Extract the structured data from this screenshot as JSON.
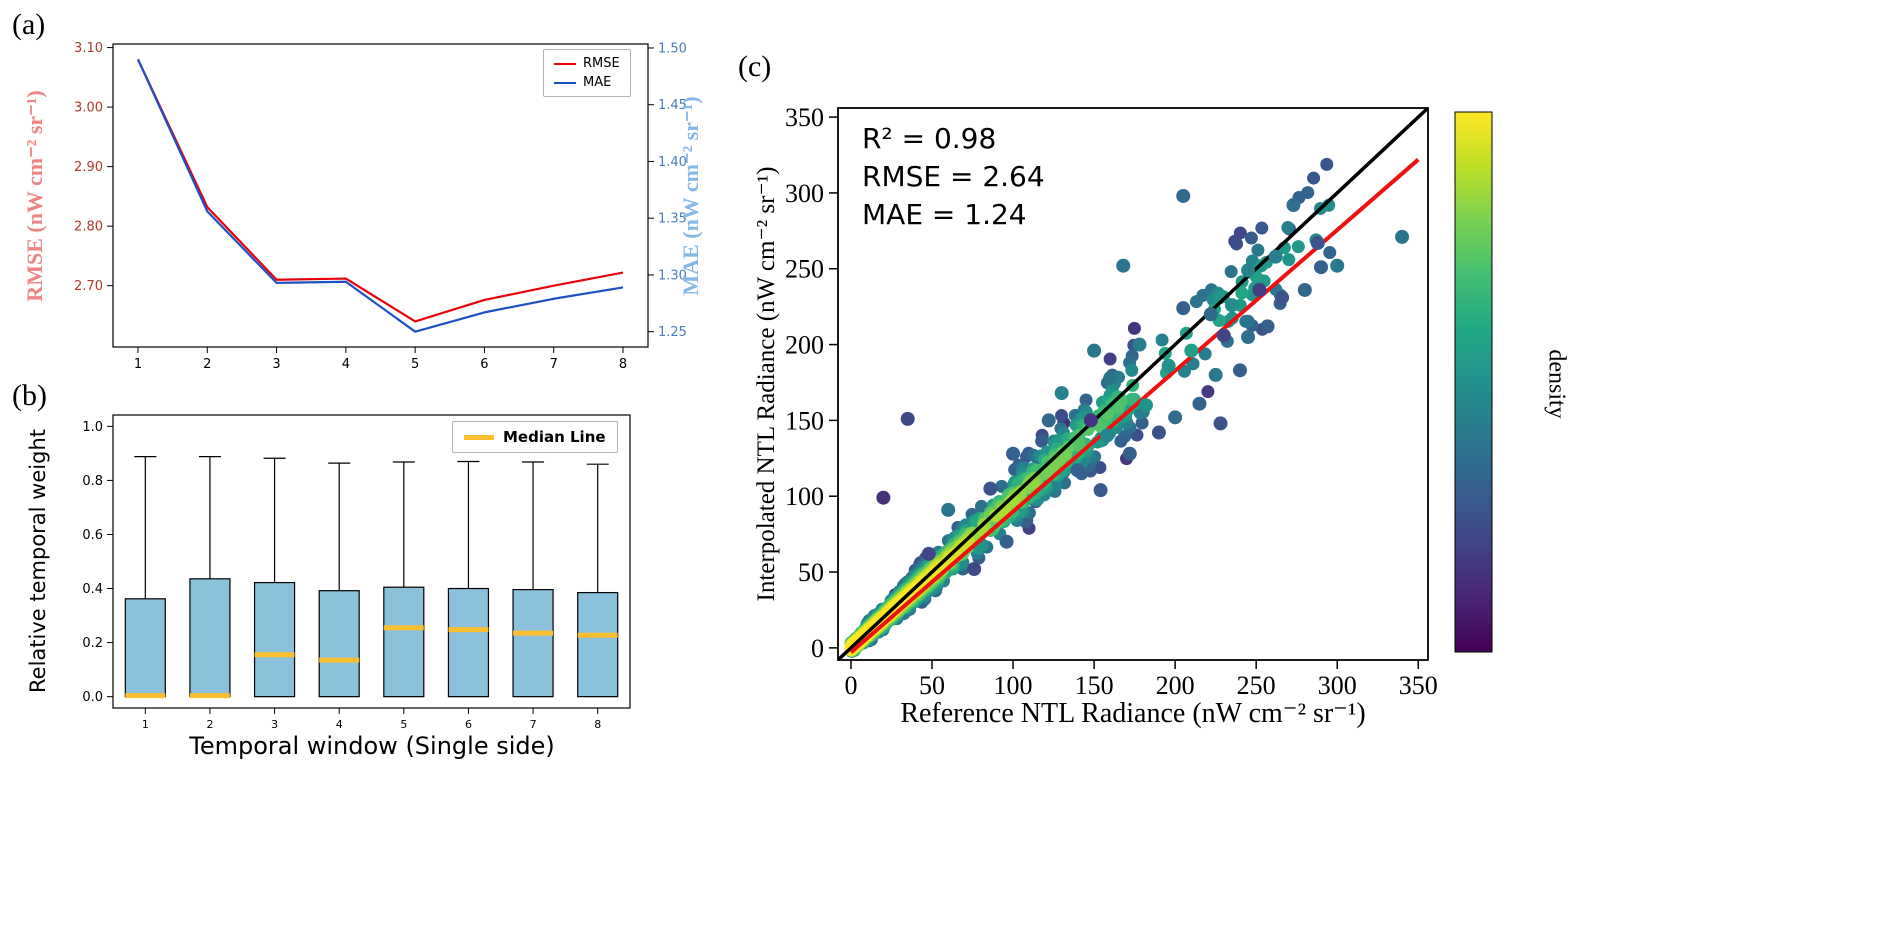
{
  "panels": {
    "a": {
      "label": "(a)"
    },
    "b": {
      "label": "(b)"
    },
    "c": {
      "label": "(c)"
    }
  },
  "chart_data": [
    {
      "type": "line",
      "x": [
        1,
        2,
        3,
        4,
        5,
        6,
        7,
        8
      ],
      "x_ticks": [
        1,
        2,
        3,
        4,
        5,
        6,
        7,
        8
      ],
      "series": [
        {
          "name": "RMSE",
          "axis": "left",
          "color": "#e8000b",
          "values": [
            3.08,
            2.832,
            2.71,
            2.712,
            2.64,
            2.676,
            2.7,
            2.722
          ]
        },
        {
          "name": "MAE",
          "axis": "right",
          "color": "#1d50c4",
          "values": [
            1.49,
            1.356,
            1.293,
            1.294,
            1.25,
            1.267,
            1.279,
            1.289
          ]
        }
      ],
      "left_axis": {
        "label": "RMSE (nW cm⁻² sr⁻¹)",
        "ticks": [
          3.1,
          3.0,
          2.9,
          2.8,
          2.7
        ],
        "lim": [
          2.597,
          3.106
        ],
        "label_color": "#ee8585",
        "tick_color": "#b03a2e"
      },
      "right_axis": {
        "label": "MAE (nW cm⁻² sr⁻¹)",
        "ticks": [
          1.5,
          1.45,
          1.4,
          1.35,
          1.3,
          1.25
        ],
        "lim": [
          1.2365,
          1.5035
        ],
        "label_color": "#85b7e8",
        "tick_color": "#4a7dbf"
      }
    },
    {
      "type": "box",
      "categories": [
        "1",
        "2",
        "3",
        "4",
        "5",
        "6",
        "7",
        "8"
      ],
      "xlabel": "Temporal window (Single side)",
      "ylabel": "Relative temporal weight",
      "ylim": [
        -0.042,
        1.042
      ],
      "y_ticks": [
        0.0,
        0.2,
        0.4,
        0.6,
        0.8,
        1.0
      ],
      "box_color": "#8cc1dc",
      "median_color": "#fbbe2e",
      "legend": "Median Line",
      "boxes": [
        {
          "whisker_low": 0.0,
          "q1": 0.0,
          "median": 0.004,
          "q3": 0.362,
          "whisker_high": 0.888
        },
        {
          "whisker_low": 0.0,
          "q1": 0.0,
          "median": 0.004,
          "q3": 0.436,
          "whisker_high": 0.888
        },
        {
          "whisker_low": 0.0,
          "q1": 0.0,
          "median": 0.155,
          "q3": 0.422,
          "whisker_high": 0.882
        },
        {
          "whisker_low": 0.0,
          "q1": 0.0,
          "median": 0.135,
          "q3": 0.392,
          "whisker_high": 0.864
        },
        {
          "whisker_low": 0.0,
          "q1": 0.0,
          "median": 0.255,
          "q3": 0.405,
          "whisker_high": 0.868
        },
        {
          "whisker_low": 0.0,
          "q1": 0.0,
          "median": 0.248,
          "q3": 0.4,
          "whisker_high": 0.87
        },
        {
          "whisker_low": 0.0,
          "q1": 0.0,
          "median": 0.235,
          "q3": 0.396,
          "whisker_high": 0.868
        },
        {
          "whisker_low": 0.0,
          "q1": 0.0,
          "median": 0.227,
          "q3": 0.385,
          "whisker_high": 0.86
        }
      ]
    },
    {
      "type": "scatter",
      "xlabel": "Reference NTL Radiance (nW cm⁻² sr⁻¹)",
      "ylabel": "Interpolated NTL Radiance (nW cm⁻² sr⁻¹)",
      "xlim": [
        -8,
        356
      ],
      "ylim": [
        -8,
        356
      ],
      "ticks": [
        0,
        50,
        100,
        150,
        200,
        250,
        300,
        350
      ],
      "stats": {
        "r2": "R² = 0.98",
        "rmse": "RMSE = 2.64",
        "mae": "MAE = 1.24"
      },
      "identity_line": {
        "p1": [
          -8,
          -8
        ],
        "p2": [
          356,
          356
        ],
        "color": "#000000",
        "width": 3.5
      },
      "fit_line": {
        "p1": [
          0,
          -3
        ],
        "p2": [
          350,
          322
        ],
        "color": "#ee1111",
        "width": 4
      },
      "colorbar": {
        "label": "density",
        "colormap": "viridis",
        "stops": [
          [
            0,
            "#440154"
          ],
          [
            0.1,
            "#482475"
          ],
          [
            0.2,
            "#414487"
          ],
          [
            0.3,
            "#355f8d"
          ],
          [
            0.4,
            "#2a788e"
          ],
          [
            0.5,
            "#21918c"
          ],
          [
            0.6,
            "#22a884"
          ],
          [
            0.7,
            "#44bf70"
          ],
          [
            0.8,
            "#7ad151"
          ],
          [
            0.9,
            "#bddf26"
          ],
          [
            1,
            "#fde725"
          ]
        ]
      },
      "cloud": {
        "seed": 20240521,
        "n": 1400,
        "components": [
          {
            "w": 0.6,
            "a": 0,
            "b": 55,
            "e": 1.35
          },
          {
            "w": 0.3,
            "a": 25,
            "b": 150,
            "e": 1.6
          },
          {
            "w": 0.1,
            "a": 100,
            "b": 200,
            "e": 1.5
          }
        ],
        "slope": 0.97,
        "noise_base": 2.2,
        "noise_scale": 0.155,
        "dark_fraction": 0.05
      },
      "outliers": [
        [
          205,
          298,
          0.34
        ],
        [
          273,
          292,
          0.36
        ],
        [
          340,
          271,
          0.38
        ],
        [
          300,
          252,
          0.4
        ],
        [
          288,
          267,
          0.25
        ],
        [
          252,
          236,
          0.18
        ],
        [
          262,
          258,
          0.42
        ],
        [
          280,
          236,
          0.33
        ],
        [
          290,
          251,
          0.3
        ],
        [
          245,
          249,
          0.44
        ],
        [
          235,
          226,
          0.48
        ],
        [
          222,
          220,
          0.34
        ],
        [
          205,
          224,
          0.3
        ],
        [
          210,
          196,
          0.55
        ],
        [
          230,
          206,
          0.2
        ],
        [
          257,
          212,
          0.3
        ],
        [
          266,
          231,
          0.26
        ],
        [
          245,
          205,
          0.35
        ],
        [
          240,
          183,
          0.3
        ],
        [
          225,
          180,
          0.4
        ],
        [
          215,
          161,
          0.32
        ],
        [
          228,
          148,
          0.25
        ],
        [
          200,
          152,
          0.35
        ],
        [
          190,
          142,
          0.26
        ],
        [
          196,
          186,
          0.5
        ],
        [
          182,
          160,
          0.5
        ],
        [
          178,
          200,
          0.42
        ],
        [
          168,
          252,
          0.38
        ],
        [
          160,
          178,
          0.38
        ],
        [
          158,
          140,
          0.46
        ],
        [
          150,
          196,
          0.4
        ],
        [
          148,
          150,
          0.15
        ],
        [
          140,
          117,
          0.3
        ],
        [
          130,
          168,
          0.44
        ],
        [
          122,
          150,
          0.34
        ],
        [
          100,
          128,
          0.3
        ],
        [
          96,
          70,
          0.3
        ],
        [
          86,
          105,
          0.26
        ],
        [
          76,
          52,
          0.22
        ],
        [
          60,
          91,
          0.38
        ],
        [
          48,
          62,
          0.2
        ],
        [
          35,
          151,
          0.22
        ],
        [
          20,
          99,
          0.14
        ],
        [
          172,
          128,
          0.3
        ],
        [
          154,
          104,
          0.28
        ]
      ]
    }
  ]
}
